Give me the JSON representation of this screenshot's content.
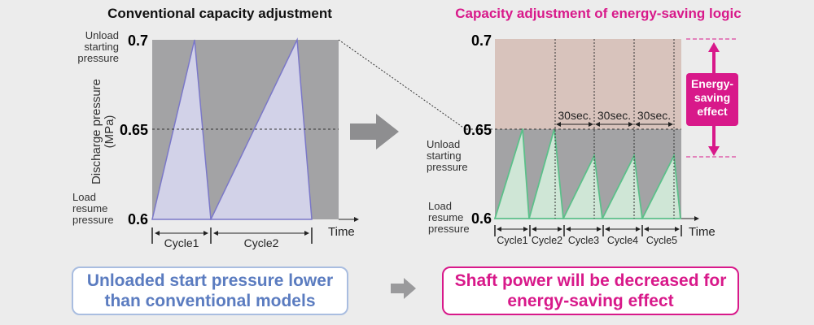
{
  "left": {
    "title": "Conventional capacity adjustment",
    "y_axis_label_1": "Discharge pressure",
    "y_axis_label_2": "(MPa)",
    "unload_label": [
      "Unload",
      "starting",
      "pressure"
    ],
    "load_label": [
      "Load",
      "resume",
      "pressure"
    ],
    "ticks": [
      "0.7",
      "0.65",
      "0.6"
    ],
    "x_label": "Time",
    "cycles": [
      "Cycle1",
      "Cycle2"
    ]
  },
  "right": {
    "title": "Capacity adjustment of energy-saving logic",
    "unload_label": [
      "Unload",
      "starting",
      "pressure"
    ],
    "load_label": [
      "Load",
      "resume",
      "pressure"
    ],
    "ticks": [
      "0.7",
      "0.65",
      "0.6"
    ],
    "x_label": "Time",
    "cycles": [
      "Cycle1",
      "Cycle2",
      "Cycle3",
      "Cycle4",
      "Cycle5"
    ],
    "intervals": [
      "30sec.",
      "30sec.",
      "30sec."
    ],
    "effect_label": [
      "Energy-",
      "saving",
      "effect"
    ]
  },
  "bottom": {
    "left_text": [
      "Unloaded start pressure lower",
      "than conventional models"
    ],
    "right_text": [
      "Shaft power will be decreased for",
      "energy-saving effect"
    ]
  },
  "chart_data": [
    {
      "type": "line",
      "title": "Conventional capacity adjustment",
      "ylabel": "Discharge pressure (MPa)",
      "xlabel": "Time",
      "ylim": [
        0.6,
        0.7
      ],
      "categories": [
        "Cycle1",
        "Cycle2"
      ],
      "peak_pressure": [
        0.7,
        0.7
      ],
      "min_pressure": 0.6
    },
    {
      "type": "line",
      "title": "Capacity adjustment of energy-saving logic",
      "xlabel": "Time",
      "ylim": [
        0.6,
        0.7
      ],
      "categories": [
        "Cycle1",
        "Cycle2",
        "Cycle3",
        "Cycle4",
        "Cycle5"
      ],
      "peak_pressure": [
        0.65,
        0.65,
        0.635,
        0.635,
        0.635
      ],
      "min_pressure": 0.6
    }
  ],
  "colors": {
    "magenta": "#d8198a",
    "blue_text": "#5b7cc0",
    "plot_gray": "#a3a3a5",
    "saving_zone": "#d8c3bc",
    "left_fill": "#d2d2e8",
    "left_line": "#7b78c8",
    "right_fill": "#cfe6d6",
    "right_line": "#5cc08a"
  }
}
